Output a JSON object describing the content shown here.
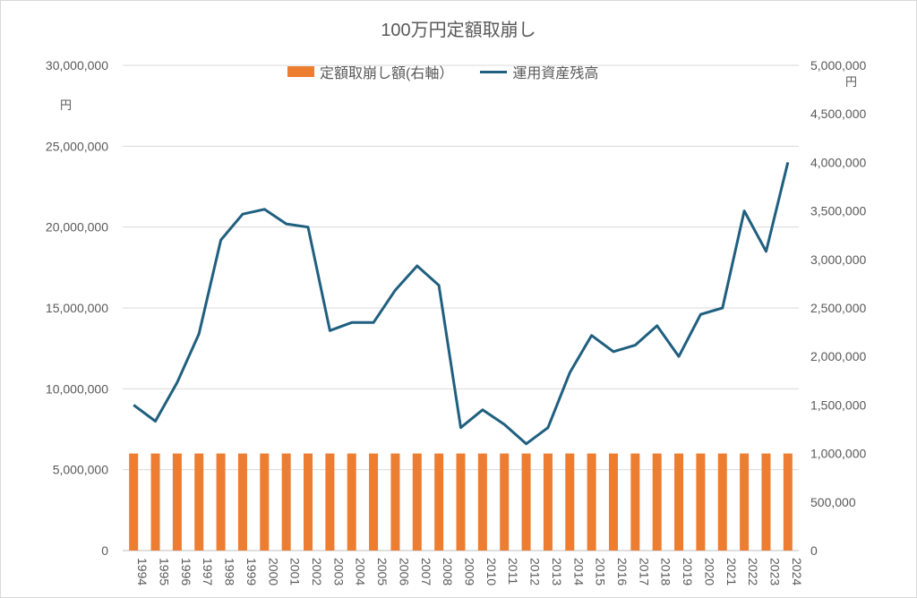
{
  "chart_data": {
    "type": "bar",
    "title": "100万円定額取崩し",
    "categories": [
      "1994",
      "1995",
      "1996",
      "1997",
      "1998",
      "1999",
      "2000",
      "2001",
      "2002",
      "2003",
      "2004",
      "2005",
      "2006",
      "2007",
      "2008",
      "2009",
      "2010",
      "2011",
      "2012",
      "2013",
      "2014",
      "2015",
      "2016",
      "2017",
      "2018",
      "2019",
      "2020",
      "2021",
      "2022",
      "2023",
      "2024"
    ],
    "series": [
      {
        "name": "定額取崩し額(右軸）",
        "type": "bar",
        "axis": "right",
        "color": "#ed7d31",
        "values": [
          1000000,
          1000000,
          1000000,
          1000000,
          1000000,
          1000000,
          1000000,
          1000000,
          1000000,
          1000000,
          1000000,
          1000000,
          1000000,
          1000000,
          1000000,
          1000000,
          1000000,
          1000000,
          1000000,
          1000000,
          1000000,
          1000000,
          1000000,
          1000000,
          1000000,
          1000000,
          1000000,
          1000000,
          1000000,
          1000000,
          1000000
        ]
      },
      {
        "name": "運用資産残高",
        "type": "line",
        "axis": "left",
        "color": "#1f5f7f",
        "values": [
          9000000,
          8000000,
          10400000,
          13400000,
          19200000,
          20800000,
          21100000,
          20200000,
          20000000,
          13600000,
          14100000,
          14100000,
          16100000,
          17600000,
          16400000,
          7600000,
          8700000,
          7800000,
          6600000,
          7600000,
          11000000,
          13300000,
          12300000,
          12700000,
          13900000,
          12000000,
          14600000,
          15000000,
          21000000,
          18500000,
          24000000
        ]
      }
    ],
    "y_left": {
      "unit": "円",
      "ylim": [
        0,
        30000000
      ],
      "tick_labels": [
        "0",
        "5,000,000",
        "10,000,000",
        "15,000,000",
        "20,000,000",
        "25,000,000",
        "30,000,000"
      ]
    },
    "y_right": {
      "unit": "円",
      "ylim": [
        0,
        5000000
      ],
      "tick_labels": [
        "0",
        "500,000",
        "1,000,000",
        "1,500,000",
        "2,000,000",
        "2,500,000",
        "3,000,000",
        "3,500,000",
        "4,000,000",
        "4,500,000",
        "5,000,000"
      ]
    },
    "grid": "horizontal",
    "legend_position": "top"
  }
}
